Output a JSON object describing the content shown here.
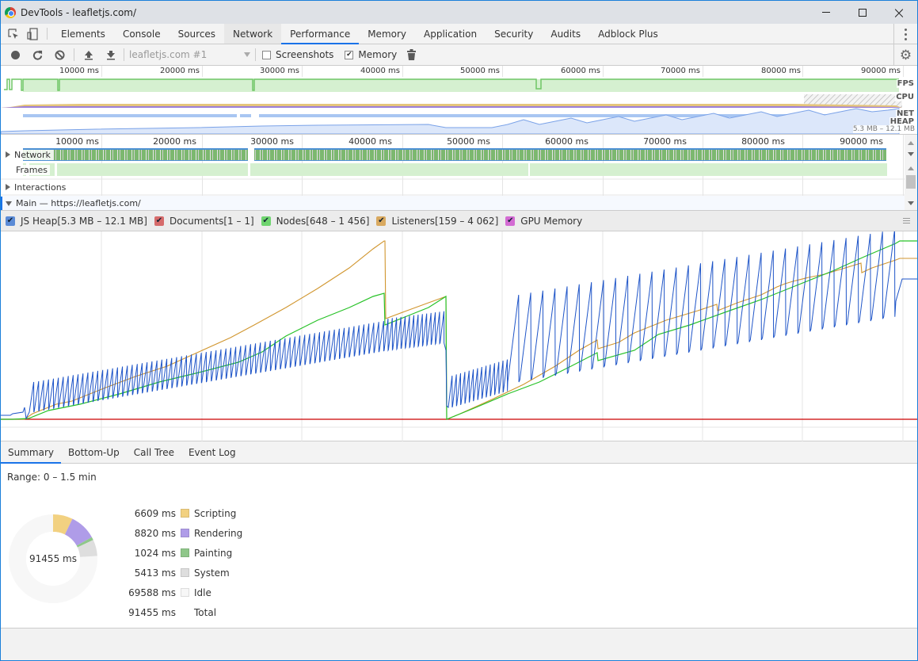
{
  "window": {
    "title": "DevTools - leafletjs.com/",
    "controls": {
      "minimize": "minimize",
      "maximize": "maximize",
      "close": "×"
    }
  },
  "tabs": [
    {
      "label": "Elements"
    },
    {
      "label": "Console"
    },
    {
      "label": "Sources"
    },
    {
      "label": "Network"
    },
    {
      "label": "Performance"
    },
    {
      "label": "Memory"
    },
    {
      "label": "Application"
    },
    {
      "label": "Security"
    },
    {
      "label": "Audits"
    },
    {
      "label": "Adblock Plus"
    }
  ],
  "active_tab": "Performance",
  "toolbar": {
    "profile_select": "leafletjs.com #1",
    "screenshots_label": "Screenshots",
    "screenshots_checked": false,
    "memory_label": "Memory",
    "memory_checked": true
  },
  "overview": {
    "ticks": [
      "10000 ms",
      "20000 ms",
      "30000 ms",
      "40000 ms",
      "50000 ms",
      "60000 ms",
      "70000 ms",
      "80000 ms",
      "90000 ms"
    ],
    "labels": {
      "fps": "FPS",
      "cpu": "CPU",
      "net": "NET",
      "heap": "HEAP"
    },
    "heap_range": "5.3 MB – 12.1 MB"
  },
  "timeline": {
    "ticks": [
      "10000 ms",
      "20000 ms",
      "30000 ms",
      "40000 ms",
      "50000 ms",
      "60000 ms",
      "70000 ms",
      "80000 ms",
      "90000 ms"
    ],
    "tracks": {
      "network": "Network",
      "frames": "Frames",
      "interactions": "Interactions",
      "main": "Main — https://leafletjs.com/"
    }
  },
  "memory_legend": [
    {
      "label": "JS Heap[5.3 MB – 12.1 MB]",
      "color": "#5b8bd6",
      "checked": true
    },
    {
      "label": "Documents[1 – 1]",
      "color": "#d66b6b",
      "checked": true
    },
    {
      "label": "Nodes[648 – 1 456]",
      "color": "#6fd46f",
      "checked": true
    },
    {
      "label": "Listeners[159 – 4 062]",
      "color": "#d9a95f",
      "checked": true
    },
    {
      "label": "GPU Memory",
      "color": "#d36bd3",
      "checked": true
    }
  ],
  "details_tabs": [
    {
      "label": "Summary"
    },
    {
      "label": "Bottom-Up"
    },
    {
      "label": "Call Tree"
    },
    {
      "label": "Event Log"
    }
  ],
  "summary": {
    "range": "Range: 0 – 1.5 min",
    "total_center": "91455 ms",
    "rows": [
      {
        "value": "6609 ms",
        "label": "Scripting",
        "color": "#f2d181"
      },
      {
        "value": "8820 ms",
        "label": "Rendering",
        "color": "#af9ce8"
      },
      {
        "value": "1024 ms",
        "label": "Painting",
        "color": "#8fc78a"
      },
      {
        "value": "5413 ms",
        "label": "System",
        "color": "#dedede"
      },
      {
        "value": "69588 ms",
        "label": "Idle",
        "color": "#f7f7f7"
      },
      {
        "value": "91455 ms",
        "label": "Total",
        "color": ""
      }
    ]
  },
  "colors": {
    "accent": "#1a73e8",
    "js_heap_line": "#1f55c8",
    "nodes_line": "#27c227",
    "listeners_line": "#d1962f",
    "documents_line": "#cc0000"
  }
}
